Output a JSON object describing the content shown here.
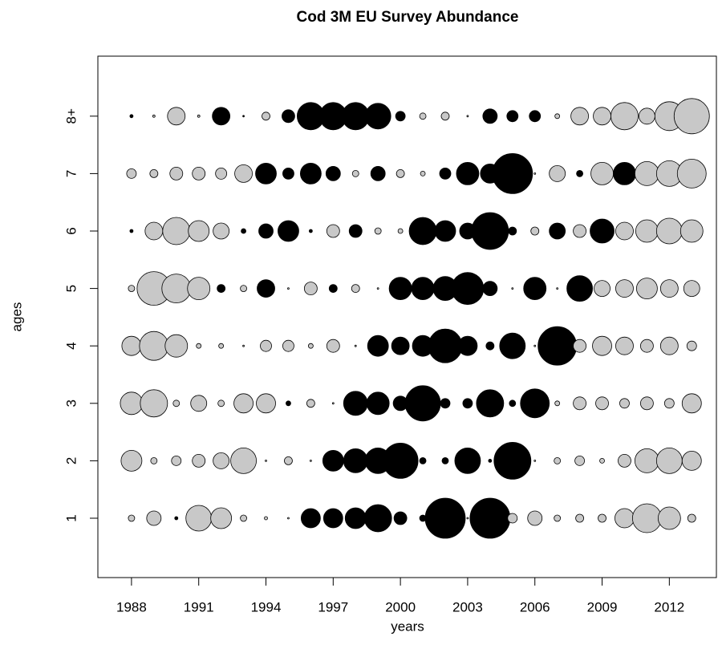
{
  "chart_data": {
    "type": "bubble",
    "title": "Cod 3M EU Survey Abundance",
    "x_label": "years",
    "y_label": "ages",
    "x": [
      1988,
      1989,
      1990,
      1991,
      1992,
      1993,
      1994,
      1995,
      1996,
      1997,
      1998,
      1999,
      2000,
      2001,
      2002,
      2003,
      2004,
      2005,
      2006,
      2007,
      2008,
      2009,
      2010,
      2011,
      2012,
      2013
    ],
    "xlim": [
      1986.5,
      2014.1
    ],
    "xticks": [
      1988,
      1991,
      1994,
      1997,
      2000,
      2003,
      2006,
      2009,
      2012
    ],
    "categories": [
      "1",
      "2",
      "3",
      "4",
      "5",
      "6",
      "7",
      "8+"
    ],
    "positive_color": "#000000",
    "negative_color": "#c8c8c8",
    "values": [
      [
        -0.4,
        -0.9,
        0.2,
        -1.6,
        -1.3,
        -0.4,
        -0.2,
        -0.1,
        1.2,
        1.2,
        1.3,
        1.7,
        0.8,
        0.4,
        2.5,
        -0.1,
        2.5,
        -0.6,
        -0.9,
        -0.4,
        -0.5,
        -0.5,
        -1.2,
        -1.8,
        -1.4,
        -0.5
      ],
      [
        -1.3,
        -0.4,
        -0.6,
        -0.8,
        -1.0,
        -1.6,
        -0.1,
        -0.5,
        -0.1,
        1.3,
        1.5,
        1.6,
        2.2,
        0.4,
        0.4,
        1.6,
        0.2,
        2.3,
        -0.1,
        -0.4,
        -0.6,
        -0.3,
        -0.8,
        -1.5,
        -1.6,
        -1.2
      ],
      [
        -1.4,
        -1.7,
        -0.4,
        -1.0,
        -0.4,
        -1.2,
        -1.2,
        0.3,
        -0.5,
        -0.1,
        1.5,
        1.4,
        0.9,
        2.2,
        0.6,
        0.6,
        1.7,
        0.4,
        1.8,
        -0.3,
        -0.8,
        -0.8,
        -0.6,
        -0.8,
        -0.6,
        -1.2
      ],
      [
        -1.2,
        -1.8,
        -1.4,
        -0.3,
        -0.3,
        -0.1,
        -0.7,
        -0.7,
        -0.3,
        -0.8,
        -0.1,
        1.3,
        1.1,
        1.3,
        2.1,
        1.2,
        0.5,
        1.6,
        -0.1,
        2.4,
        -0.8,
        -1.2,
        -1.1,
        -0.8,
        -1.1,
        -0.6
      ],
      [
        -0.4,
        -2.1,
        -1.8,
        -1.4,
        0.5,
        -0.4,
        1.1,
        -0.1,
        -0.8,
        0.5,
        -0.5,
        -0.1,
        1.4,
        1.4,
        1.5,
        2.0,
        0.9,
        -0.1,
        1.4,
        -0.1,
        1.6,
        -1.0,
        -1.1,
        -1.3,
        -1.1,
        -1.0
      ],
      [
        0.2,
        -1.1,
        -1.7,
        -1.3,
        -1.0,
        0.3,
        0.9,
        1.3,
        0.2,
        -0.8,
        0.8,
        -0.4,
        -0.3,
        1.7,
        1.3,
        1.0,
        2.3,
        0.5,
        -0.5,
        1.0,
        -0.8,
        1.5,
        -1.1,
        -1.4,
        -1.6,
        -1.4
      ],
      [
        -0.6,
        -0.5,
        -0.8,
        -0.8,
        -0.7,
        -1.1,
        1.3,
        0.7,
        1.3,
        0.9,
        -0.4,
        0.9,
        -0.5,
        -0.3,
        0.7,
        1.4,
        1.2,
        2.5,
        -0.1,
        -1.0,
        0.4,
        -1.4,
        1.4,
        -1.5,
        -1.6,
        -1.8
      ],
      [
        0.2,
        -0.15,
        -1.1,
        -0.15,
        1.1,
        0.1,
        -0.5,
        0.8,
        1.7,
        1.7,
        1.7,
        1.6,
        0.6,
        -0.4,
        -0.5,
        -0.1,
        0.9,
        0.7,
        0.7,
        -0.3,
        -1.1,
        -1.1,
        -1.7,
        -1.0,
        -1.8,
        -2.2
      ]
    ]
  }
}
